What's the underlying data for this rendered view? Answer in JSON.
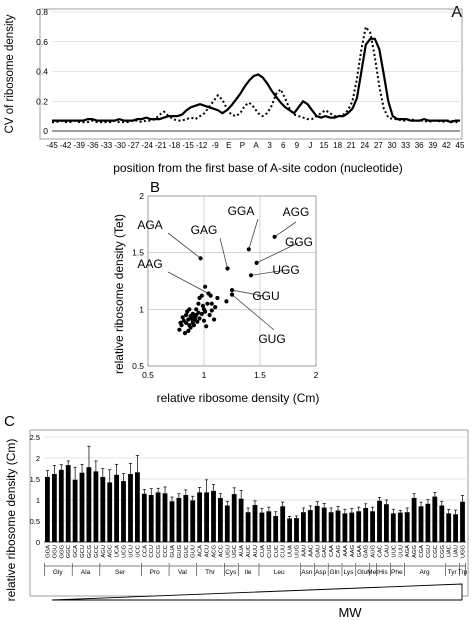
{
  "panels": {
    "a": "A",
    "b": "B",
    "c": "C"
  },
  "chart_data": [
    {
      "type": "line",
      "panel": "A",
      "xlabel": "position from the first base of A-site codon  (nucleotide)",
      "ylabel": "CV of ribosome density",
      "x_tick_labels": [
        "-45",
        "-42",
        "-39",
        "-36",
        "-33",
        "-30",
        "-27",
        "-24",
        "-21",
        "-18",
        "-15",
        "-12",
        "-9",
        "E",
        "P",
        "A",
        "3",
        "6",
        "9",
        "J",
        "15",
        "18",
        "21",
        "24",
        "27",
        "30",
        "33",
        "36",
        "39",
        "42",
        "45"
      ],
      "ylim": [
        0,
        0.8
      ],
      "yticks": [
        "0",
        "0.2",
        "0.4",
        "0.6",
        "0.8"
      ],
      "series": [
        {
          "style": "solid",
          "values": [
            0.07,
            0.07,
            0.07,
            0.07,
            0.07,
            0.07,
            0.07,
            0.07,
            0.08,
            0.08,
            0.07,
            0.07,
            0.07,
            0.07,
            0.07,
            0.08,
            0.07,
            0.07,
            0.07,
            0.08,
            0.08,
            0.09,
            0.08,
            0.08,
            0.08,
            0.09,
            0.1,
            0.1,
            0.1,
            0.11,
            0.14,
            0.16,
            0.17,
            0.18,
            0.17,
            0.16,
            0.15,
            0.14,
            0.12,
            0.14,
            0.17,
            0.21,
            0.25,
            0.3,
            0.34,
            0.37,
            0.38,
            0.36,
            0.32,
            0.27,
            0.23,
            0.19,
            0.16,
            0.14,
            0.12,
            0.16,
            0.2,
            0.18,
            0.14,
            0.1,
            0.09,
            0.1,
            0.09,
            0.09,
            0.1,
            0.1,
            0.12,
            0.15,
            0.22,
            0.4,
            0.58,
            0.62,
            0.62,
            0.55,
            0.38,
            0.2,
            0.1,
            0.08,
            0.08,
            0.08,
            0.07,
            0.07,
            0.07,
            0.08,
            0.07,
            0.07,
            0.07,
            0.07,
            0.07,
            0.06,
            0.07,
            0.07
          ]
        },
        {
          "style": "dotted",
          "values": [
            0.06,
            0.06,
            0.07,
            0.06,
            0.06,
            0.07,
            0.06,
            0.06,
            0.06,
            0.07,
            0.06,
            0.06,
            0.06,
            0.06,
            0.07,
            0.06,
            0.06,
            0.06,
            0.07,
            0.07,
            0.06,
            0.07,
            0.07,
            0.08,
            0.11,
            0.13,
            0.1,
            0.08,
            0.07,
            0.07,
            0.08,
            0.09,
            0.08,
            0.1,
            0.12,
            0.16,
            0.2,
            0.24,
            0.21,
            0.15,
            0.11,
            0.1,
            0.12,
            0.17,
            0.19,
            0.16,
            0.12,
            0.1,
            0.12,
            0.17,
            0.25,
            0.28,
            0.22,
            0.15,
            0.11,
            0.1,
            0.09,
            0.08,
            0.08,
            0.1,
            0.12,
            0.14,
            0.12,
            0.1,
            0.1,
            0.11,
            0.14,
            0.2,
            0.35,
            0.55,
            0.7,
            0.66,
            0.5,
            0.3,
            0.15,
            0.09,
            0.08,
            0.08,
            0.07,
            0.07,
            0.08,
            0.07,
            0.07,
            0.07,
            0.06,
            0.07,
            0.07,
            0.06,
            0.07,
            0.07,
            0.06,
            0.06
          ]
        }
      ]
    },
    {
      "type": "scatter",
      "panel": "B",
      "xlabel": "relative ribosome density (Cm)",
      "ylabel": "relative ribosome density (Tet)",
      "xlim": [
        0.5,
        2
      ],
      "ylim": [
        0.5,
        2
      ],
      "xticks": [
        "0.5",
        "1",
        "1.5",
        "2"
      ],
      "yticks": [
        "0.5",
        "1",
        "1.5",
        "2"
      ],
      "points": [
        [
          1.63,
          1.64
        ],
        [
          1.4,
          1.53
        ],
        [
          1.47,
          1.41
        ],
        [
          0.97,
          1.45
        ],
        [
          1.21,
          1.36
        ],
        [
          1.42,
          1.3
        ],
        [
          1.25,
          1.17
        ],
        [
          1.25,
          1.13
        ],
        [
          1.2,
          1.07
        ],
        [
          1.07,
          1.05
        ],
        [
          1.04,
          1.14
        ],
        [
          1.01,
          1.2
        ],
        [
          0.98,
          1.12
        ],
        [
          0.95,
          1.05
        ],
        [
          0.93,
          1.0
        ],
        [
          0.9,
          0.96
        ],
        [
          0.88,
          0.94
        ],
        [
          0.86,
          0.91
        ],
        [
          0.84,
          0.95
        ],
        [
          0.82,
          0.9
        ],
        [
          0.8,
          0.86
        ],
        [
          0.78,
          0.82
        ],
        [
          0.83,
          0.79
        ],
        [
          0.88,
          0.84
        ],
        [
          0.9,
          0.9
        ],
        [
          0.92,
          0.93
        ],
        [
          0.94,
          0.89
        ],
        [
          0.96,
          0.92
        ],
        [
          0.98,
          0.96
        ],
        [
          1.0,
          0.9
        ],
        [
          1.02,
          0.85
        ],
        [
          1.05,
          0.95
        ],
        [
          1.07,
          0.99
        ],
        [
          1.09,
          0.91
        ],
        [
          1.1,
          1.02
        ],
        [
          1.12,
          1.1
        ],
        [
          0.87,
          1.0
        ],
        [
          0.85,
          0.98
        ],
        [
          0.89,
          0.92
        ],
        [
          0.91,
          0.95
        ],
        [
          0.84,
          0.88
        ],
        [
          0.81,
          0.93
        ],
        [
          0.99,
          1.03
        ],
        [
          1.01,
          0.98
        ],
        [
          0.87,
          0.86
        ],
        [
          0.91,
          0.86
        ],
        [
          0.93,
          0.95
        ],
        [
          0.95,
          0.97
        ],
        [
          1.03,
          1.05
        ],
        [
          0.79,
          0.88
        ],
        [
          0.86,
          0.81
        ],
        [
          1.06,
          1.12
        ],
        [
          0.92,
          0.91
        ],
        [
          0.9,
          0.88
        ],
        [
          0.96,
          1.1
        ],
        [
          1.0,
          1.0
        ]
      ],
      "annotations": [
        {
          "label": "AGA",
          "target": [
            0.97,
            1.45
          ]
        },
        {
          "label": "GAG",
          "target": [
            1.21,
            1.36
          ]
        },
        {
          "label": "GGA",
          "target": [
            1.4,
            1.53
          ]
        },
        {
          "label": "AGG",
          "target": [
            1.63,
            1.64
          ]
        },
        {
          "label": "GGG",
          "target": [
            1.47,
            1.41
          ]
        },
        {
          "label": "UGG",
          "target": [
            1.42,
            1.3
          ]
        },
        {
          "label": "AAG",
          "target": [
            1.04,
            1.14
          ]
        },
        {
          "label": "GGU",
          "target": [
            1.25,
            1.17
          ]
        },
        {
          "label": "GUG",
          "target": [
            1.25,
            1.13
          ]
        }
      ]
    },
    {
      "type": "bar",
      "panel": "C",
      "ylabel": "relative ribosome density (Cm)",
      "xlabel": "MW",
      "ylim": [
        0,
        2.5
      ],
      "yticks": [
        "0",
        "0.5",
        "1",
        "1.5",
        "2",
        "2.5"
      ],
      "categories": [
        "GGA",
        "GGU",
        "GGG",
        "GGC",
        "GCA",
        "GCU",
        "GCG",
        "GCC",
        "AGU",
        "AGC",
        "UCA",
        "UCG",
        "UCU",
        "UCC",
        "CCA",
        "CCU",
        "CCG",
        "CCC",
        "GUA",
        "GUG",
        "GUC",
        "GUU",
        "ACA",
        "ACU",
        "ACG",
        "ACC",
        "UGU",
        "UGC",
        "AUA",
        "AUC",
        "AUU",
        "CUA",
        "CUG",
        "CUC",
        "CUU",
        "UUA",
        "UUG",
        "AAU",
        "AAC",
        "GAU",
        "GAC",
        "CAA",
        "CAG",
        "AAA",
        "AAG",
        "GAA",
        "GAG",
        "AUG",
        "CAC",
        "CAU",
        "UUC",
        "UUU",
        "AGA",
        "AGG",
        "CGA",
        "CGU",
        "CGC",
        "CGG",
        "UAC",
        "UAU",
        "UGG"
      ],
      "values": [
        1.55,
        1.62,
        1.72,
        1.83,
        1.48,
        1.65,
        1.78,
        1.68,
        1.55,
        1.42,
        1.6,
        1.45,
        1.62,
        1.66,
        1.15,
        1.12,
        1.18,
        1.16,
        0.97,
        1.05,
        1.12,
        0.99,
        1.18,
        1.18,
        1.22,
        1.05,
        0.87,
        1.14,
        1.03,
        0.71,
        0.88,
        0.7,
        0.73,
        0.62,
        0.85,
        0.56,
        0.57,
        0.71,
        0.76,
        0.86,
        0.82,
        0.71,
        0.75,
        0.68,
        0.7,
        0.73,
        0.81,
        0.73,
        0.98,
        0.9,
        0.68,
        0.7,
        0.71,
        1.05,
        0.85,
        0.91,
        1.08,
        0.87,
        0.68,
        0.66,
        0.96
      ],
      "errors": [
        0.15,
        0.2,
        0.12,
        0.1,
        0.3,
        0.2,
        0.5,
        0.25,
        0.2,
        0.3,
        0.25,
        0.18,
        0.25,
        0.4,
        0.1,
        0.15,
        0.1,
        0.15,
        0.1,
        0.1,
        0.12,
        0.1,
        0.12,
        0.3,
        0.15,
        0.1,
        0.1,
        0.15,
        0.2,
        0.1,
        0.1,
        0.1,
        0.1,
        0.1,
        0.1,
        0.05,
        0.05,
        0.1,
        0.1,
        0.1,
        0.1,
        0.1,
        0.1,
        0.1,
        0.1,
        0.1,
        0.1,
        0.1,
        0.08,
        0.1,
        0.1,
        0.05,
        0.1,
        0.1,
        0.1,
        0.1,
        0.1,
        0.1,
        0.1,
        0.1,
        0.15
      ],
      "groups": [
        {
          "label": "Gly",
          "count": 4
        },
        {
          "label": "Ala",
          "count": 4
        },
        {
          "label": "Ser",
          "count": 6
        },
        {
          "label": "Pro",
          "count": 4
        },
        {
          "label": "Val",
          "count": 4
        },
        {
          "label": "Thr",
          "count": 4
        },
        {
          "label": "Cys",
          "count": 2
        },
        {
          "label": "Ile",
          "count": 3
        },
        {
          "label": "Leu",
          "count": 6
        },
        {
          "label": "Asn",
          "count": 2
        },
        {
          "label": "Asp",
          "count": 2
        },
        {
          "label": "Gln",
          "count": 2
        },
        {
          "label": "Lys",
          "count": 2
        },
        {
          "label": "Glu",
          "count": 2
        },
        {
          "label": "Met",
          "count": 1
        },
        {
          "label": "His",
          "count": 2
        },
        {
          "label": "Phe",
          "count": 2
        },
        {
          "label": "Arg",
          "count": 6
        },
        {
          "label": "Tyr",
          "count": 2
        },
        {
          "label": "Trp",
          "count": 1
        }
      ]
    }
  ]
}
